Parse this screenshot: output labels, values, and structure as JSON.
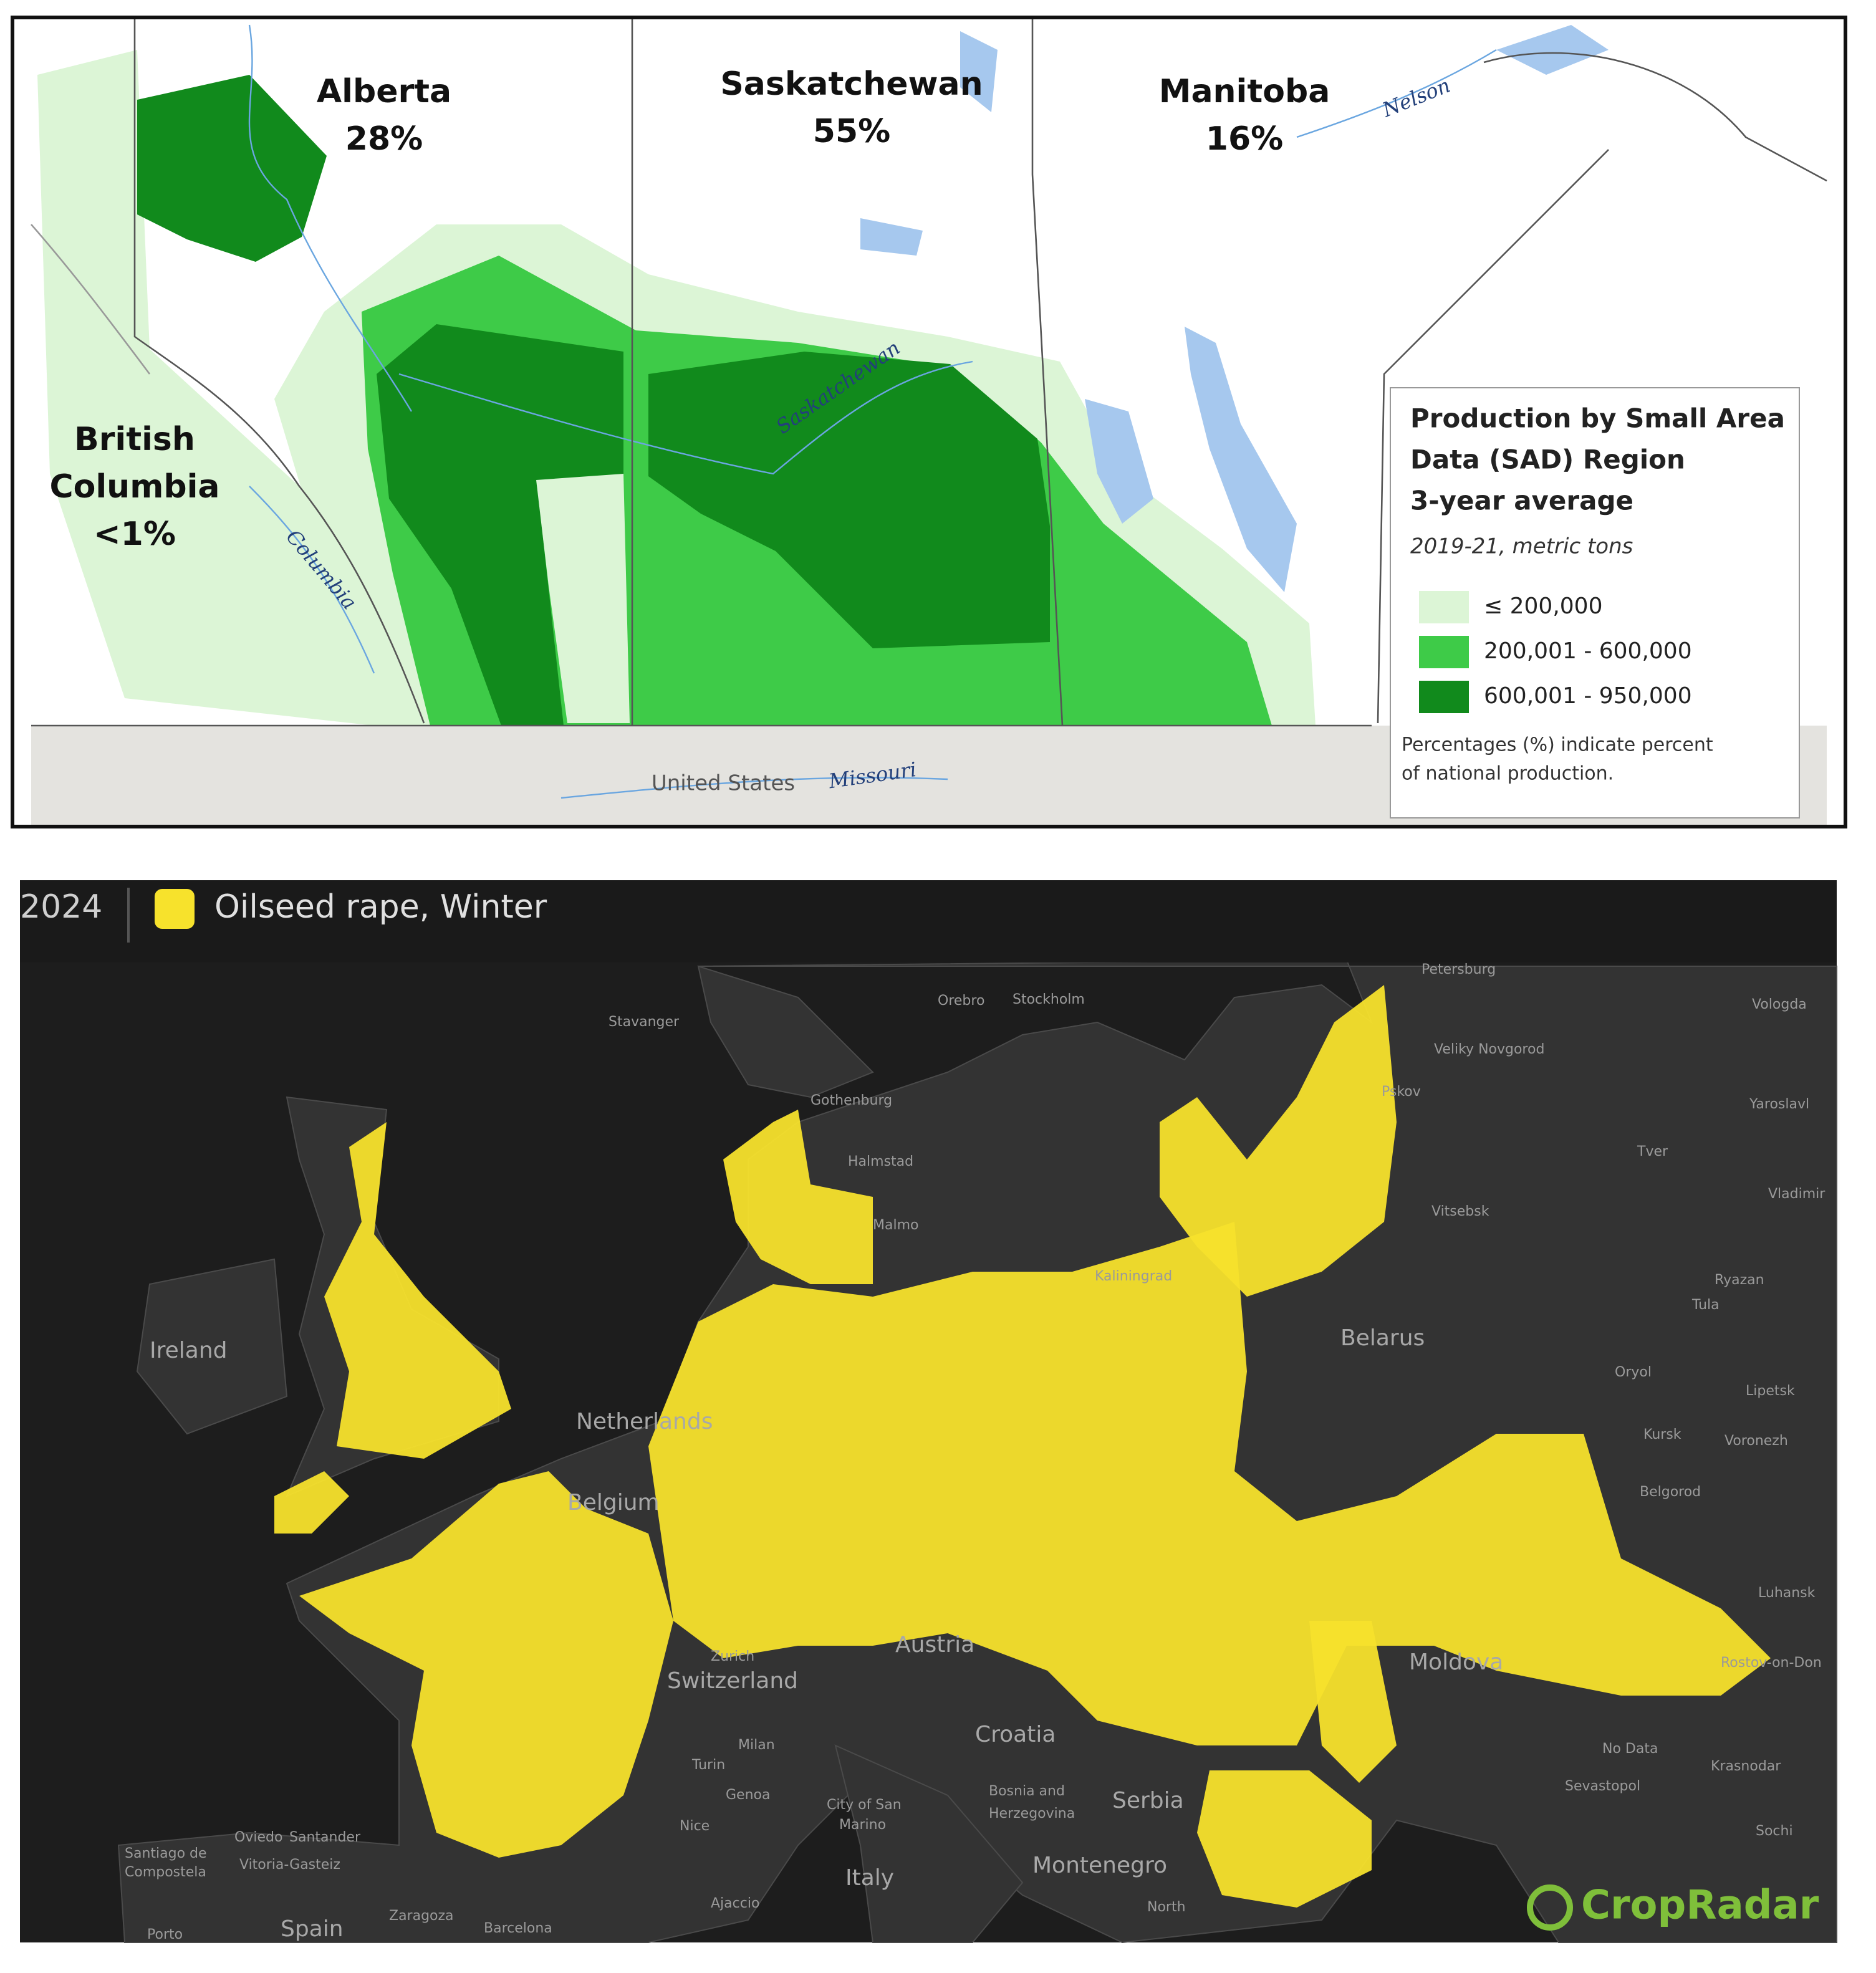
{
  "canada_map": {
    "provinces": [
      {
        "name": "Alberta",
        "share": "28%"
      },
      {
        "name": "Saskatchewan",
        "share": "55%"
      },
      {
        "name": "Manitoba",
        "share": "16%"
      },
      {
        "name_lines": [
          "British",
          "Columbia"
        ],
        "share": "<1%"
      }
    ],
    "country_label": "United States",
    "rivers": [
      "Nelson",
      "Saskatchewan",
      "Columbia",
      "Missouri"
    ],
    "legend": {
      "title_lines": [
        "Production by Small Area",
        "Data (SAD) Region",
        "3-year average"
      ],
      "subtitle": "2019-21, metric tons",
      "items": [
        {
          "label": "≤ 200,000",
          "color": "#dcf5d6"
        },
        {
          "label": "200,001 - 600,000",
          "color": "#3ecb48"
        },
        {
          "label": "600,001 - 950,000",
          "color": "#118a1c"
        }
      ],
      "note_lines": [
        "Percentages (%) indicate percent",
        "of national production."
      ]
    }
  },
  "europe_map": {
    "year": "2024",
    "crop": "Oilseed rape, Winter",
    "crop_color": "#f7e22c",
    "brand": "CropRadar",
    "places": [
      "Petersburg",
      "Vologda",
      "Orebro",
      "Stockholm",
      "Stavanger",
      "Veliky Novgorod",
      "Pskov",
      "Yaroslavl",
      "Gothenburg",
      "Tver",
      "Halmstad",
      "Vladimir",
      "Malmo",
      "Vitsebsk",
      "Kaliningrad",
      "Ryazan",
      "Tula",
      "Ireland",
      "Belarus",
      "Oryol",
      "Lipetsk",
      "Netherlands",
      "Kursk",
      "Voronezh",
      "Belgium",
      "Belgorod",
      "Luhansk",
      "Zurich",
      "Switzerland",
      "Austria",
      "Moldova",
      "Rostov-on-Don",
      "Croatia",
      "Milan",
      "Turin",
      "Genoa",
      "No Data",
      "Krasnodar",
      "Sevastopol",
      "Bosnia and",
      "Herzegovina",
      "Serbia",
      "City of San",
      "Marino",
      "Nice",
      "Sochi",
      "Santiago de",
      "Compostela",
      "Oviedo",
      "Santander",
      "Vitoria-Gasteiz",
      "Italy",
      "Montenegro",
      "Ajaccio",
      "Zaragoza",
      "Barcelona",
      "Spain",
      "North",
      "Porto"
    ]
  }
}
